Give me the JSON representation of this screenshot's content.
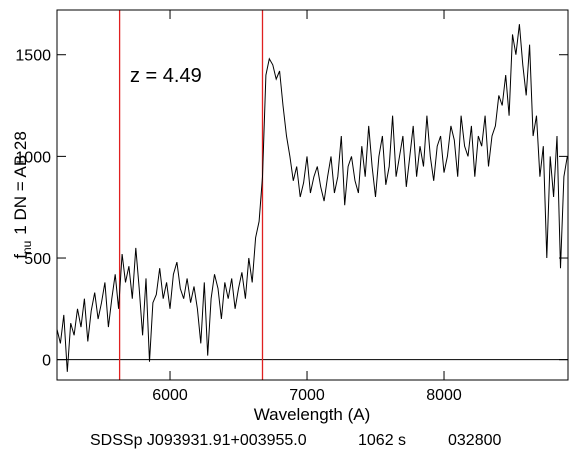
{
  "chart_data": {
    "type": "line",
    "annotation": "z = 4.49",
    "xlabel": "Wavelength (A)",
    "ylabel": {
      "main": "f",
      "sub": "nu",
      "rest": "1 DN = AB 28"
    },
    "footer": [
      "SDSSp J093931.91+003955.0",
      "1062 s",
      "032800"
    ],
    "xlim": [
      5175,
      8905
    ],
    "ylim": [
      -100,
      1720
    ],
    "xticks": [
      6000,
      7000,
      8000
    ],
    "yticks": [
      0,
      500,
      1000,
      1500
    ],
    "zero_line": 0,
    "vlines": {
      "color": "#e02020",
      "values": [
        5632,
        6675
      ]
    },
    "x": [
      5175,
      5200,
      5225,
      5250,
      5275,
      5300,
      5325,
      5350,
      5375,
      5400,
      5425,
      5450,
      5475,
      5500,
      5525,
      5550,
      5575,
      5600,
      5625,
      5650,
      5675,
      5700,
      5725,
      5750,
      5775,
      5800,
      5825,
      5850,
      5875,
      5900,
      5925,
      5950,
      5975,
      6000,
      6025,
      6050,
      6075,
      6100,
      6125,
      6150,
      6175,
      6200,
      6225,
      6250,
      6275,
      6300,
      6325,
      6350,
      6375,
      6400,
      6425,
      6450,
      6475,
      6500,
      6525,
      6550,
      6575,
      6600,
      6625,
      6650,
      6675,
      6700,
      6725,
      6750,
      6775,
      6800,
      6825,
      6850,
      6875,
      6900,
      6925,
      6950,
      6975,
      7000,
      7025,
      7050,
      7075,
      7100,
      7125,
      7150,
      7175,
      7200,
      7225,
      7250,
      7275,
      7300,
      7325,
      7350,
      7375,
      7400,
      7425,
      7450,
      7475,
      7500,
      7525,
      7550,
      7575,
      7600,
      7625,
      7650,
      7675,
      7700,
      7725,
      7750,
      7775,
      7800,
      7825,
      7850,
      7875,
      7900,
      7925,
      7950,
      7975,
      8000,
      8025,
      8050,
      8075,
      8100,
      8125,
      8150,
      8175,
      8200,
      8225,
      8250,
      8275,
      8300,
      8325,
      8350,
      8375,
      8400,
      8425,
      8450,
      8475,
      8500,
      8525,
      8550,
      8575,
      8600,
      8625,
      8650,
      8675,
      8700,
      8725,
      8750,
      8775,
      8800,
      8825,
      8850,
      8875,
      8900
    ],
    "series": [
      {
        "color": "#000000",
        "values": [
          150,
          80,
          220,
          -60,
          180,
          120,
          250,
          160,
          300,
          90,
          240,
          330,
          200,
          280,
          380,
          160,
          300,
          420,
          250,
          520,
          380,
          460,
          300,
          550,
          350,
          120,
          400,
          -10,
          280,
          320,
          450,
          300,
          380,
          250,
          420,
          480,
          350,
          300,
          400,
          280,
          360,
          250,
          80,
          380,
          20,
          300,
          420,
          350,
          200,
          380,
          300,
          400,
          250,
          350,
          430,
          300,
          500,
          380,
          600,
          680,
          900,
          1400,
          1480,
          1450,
          1380,
          1420,
          1250,
          1100,
          1000,
          880,
          950,
          800,
          870,
          1000,
          820,
          900,
          950,
          850,
          780,
          900,
          1000,
          820,
          900,
          1100,
          760,
          950,
          1000,
          880,
          820,
          1050,
          900,
          1150,
          950,
          800,
          1000,
          1100,
          860,
          950,
          1200,
          900,
          1000,
          1100,
          850,
          1000,
          1150,
          900,
          1050,
          950,
          1200,
          1000,
          880,
          1050,
          1100,
          920,
          1000,
          1150,
          1080,
          900,
          1200,
          1050,
          1000,
          1150,
          900,
          1100,
          1050,
          1200,
          950,
          1100,
          1150,
          1300,
          1250,
          1400,
          1200,
          1600,
          1500,
          1650,
          1450,
          1300,
          1550,
          1100,
          1200,
          900,
          1050,
          500,
          1000,
          800,
          1100,
          450,
          900,
          1000
        ]
      }
    ]
  }
}
